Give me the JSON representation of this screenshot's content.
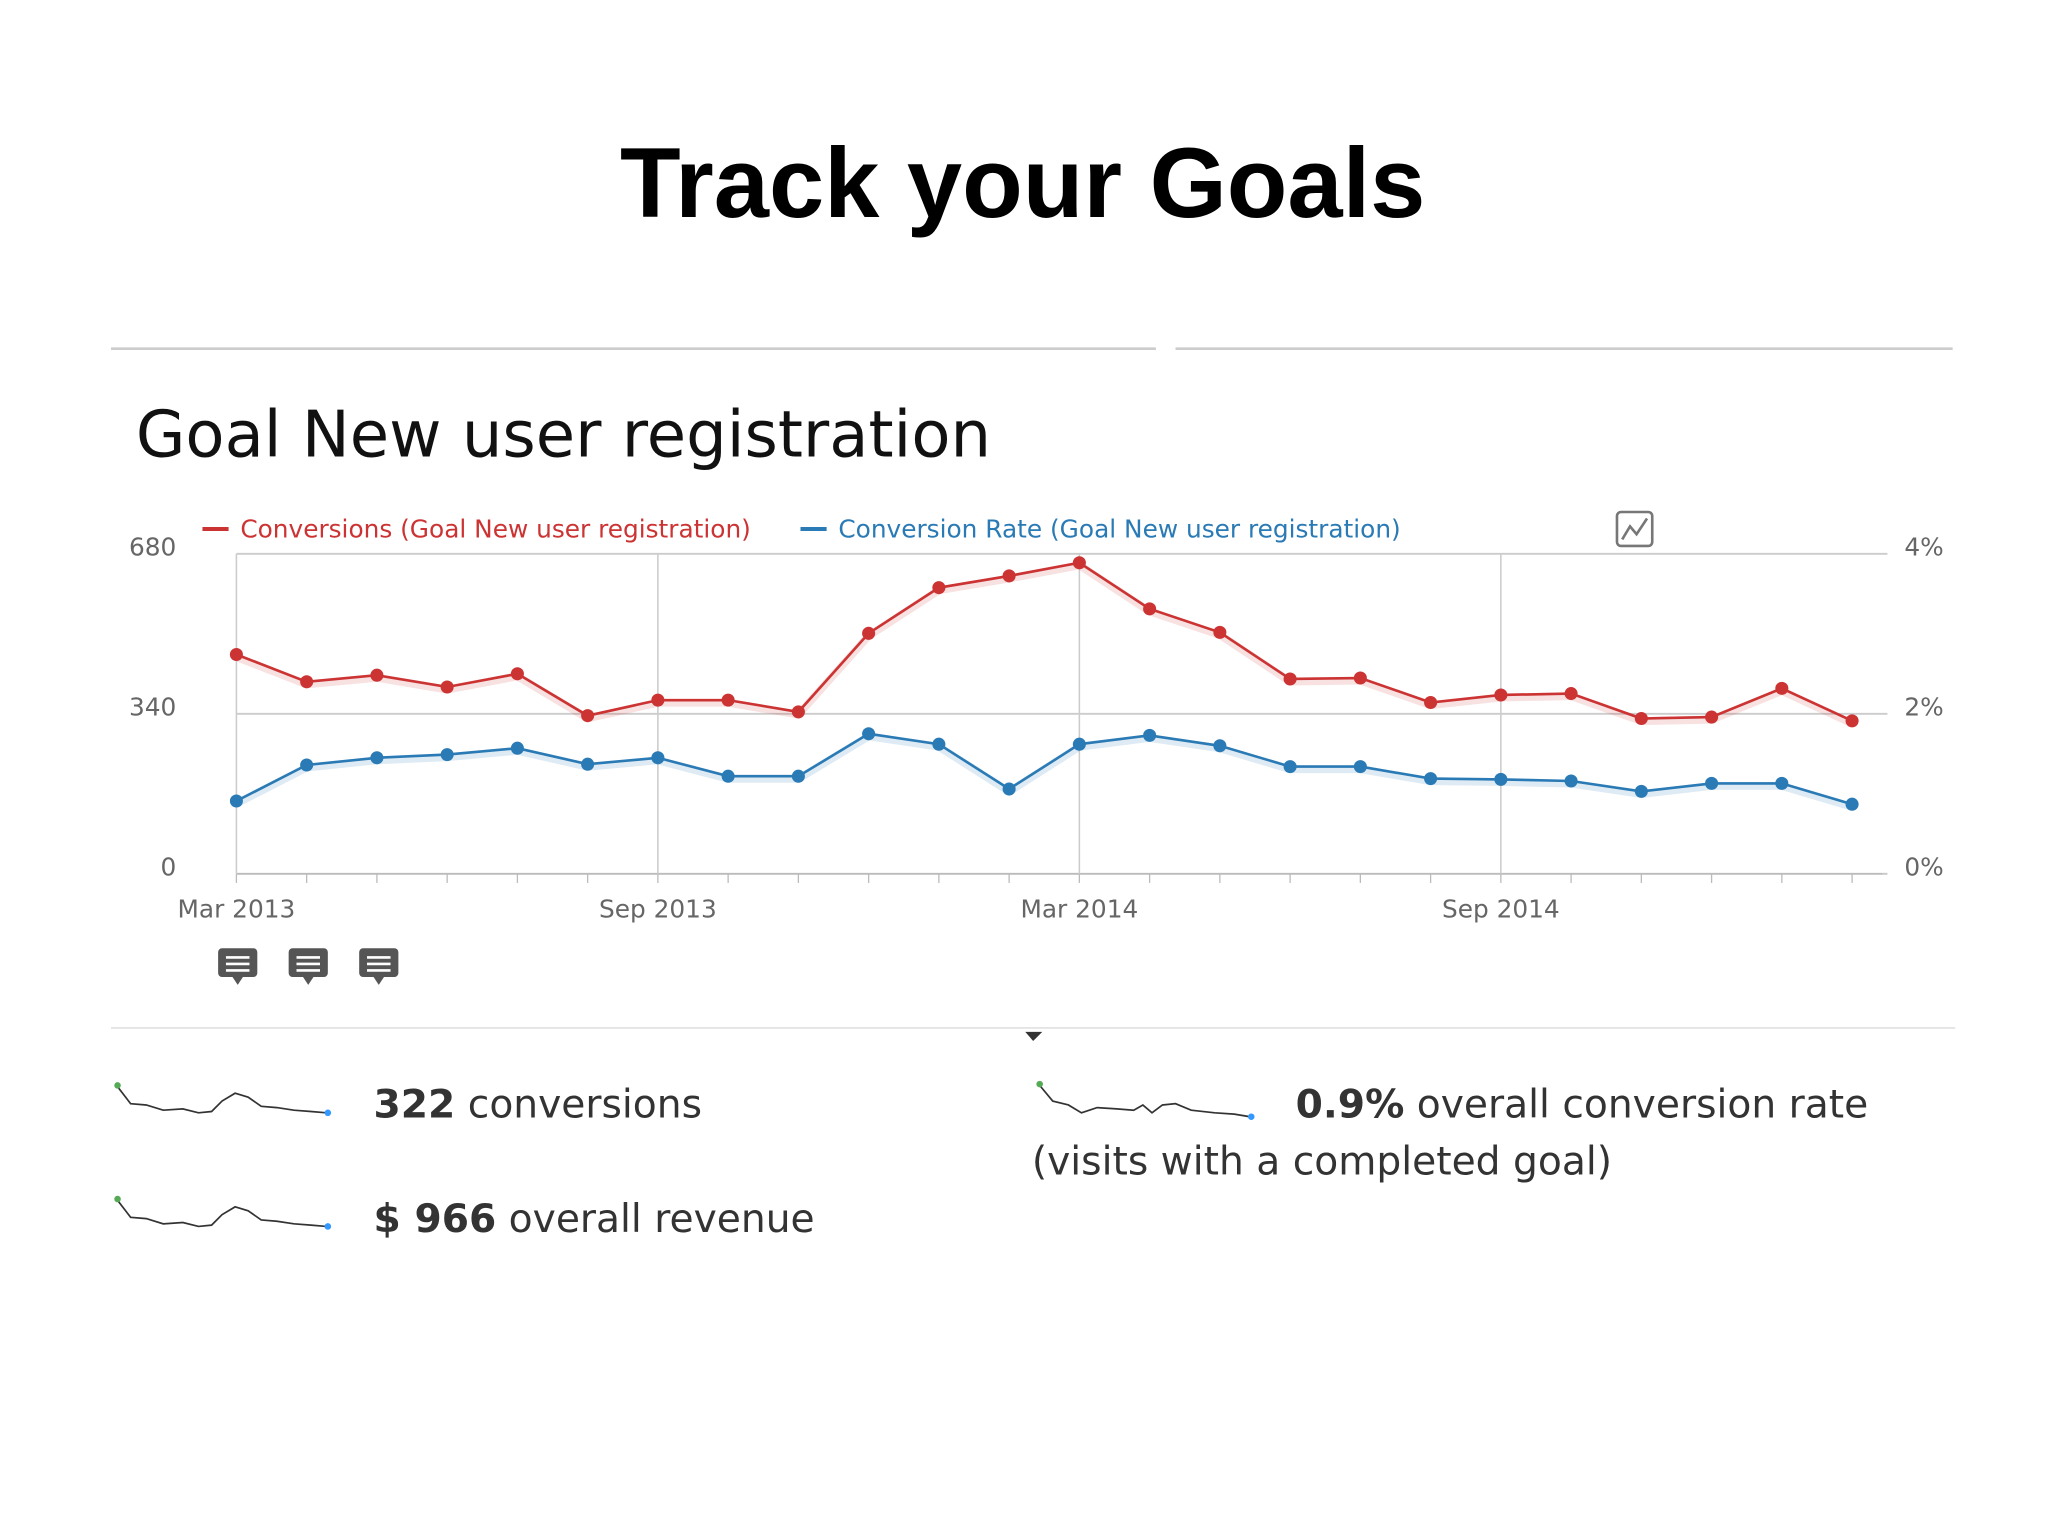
{
  "title": "Track your Goals",
  "chart_data": {
    "type": "line",
    "title": "Goal New user registration",
    "categories": [
      "Mar 2013",
      null,
      null,
      null,
      null,
      null,
      "Sep 2013",
      null,
      null,
      null,
      null,
      null,
      "Mar 2014",
      null,
      null,
      null,
      null,
      null,
      "Sep 2014",
      null,
      null,
      null,
      null,
      null
    ],
    "series": [
      {
        "name": "Conversions (Goal New user registration)",
        "color": "#cc3333",
        "values": [
          466,
          408,
          422,
          397,
          425,
          336,
          369,
          369,
          344,
          511,
          608,
          633,
          661,
          563,
          513,
          414,
          416,
          364,
          380,
          383,
          330,
          333,
          394,
          325
        ]
      },
      {
        "name": "Conversion Rate (Goal New user registration)",
        "color": "#2a7ab5",
        "axis": "y2",
        "values": [
          0.91,
          1.36,
          1.45,
          1.49,
          1.57,
          1.37,
          1.45,
          1.22,
          1.22,
          1.75,
          1.62,
          1.06,
          1.62,
          1.73,
          1.6,
          1.34,
          1.34,
          1.19,
          1.18,
          1.16,
          1.03,
          1.13,
          1.13,
          0.87
        ]
      }
    ],
    "ylim": [
      0,
      680
    ],
    "yticks": [
      0,
      340,
      680
    ],
    "y2lim": [
      0,
      4
    ],
    "y2ticks": [
      {
        "value": 0,
        "label": "0%"
      },
      {
        "value": 2,
        "label": "2%"
      },
      {
        "value": 4,
        "label": "4%"
      }
    ],
    "grid": true
  },
  "summary": {
    "conversions": {
      "value": "322",
      "text": " conversions"
    },
    "revenue": {
      "value": "$ 966",
      "text": " overall revenue"
    },
    "rate": {
      "value": "0.9%",
      "text": " overall conversion rate",
      "note": "(visits with a completed goal)"
    }
  }
}
